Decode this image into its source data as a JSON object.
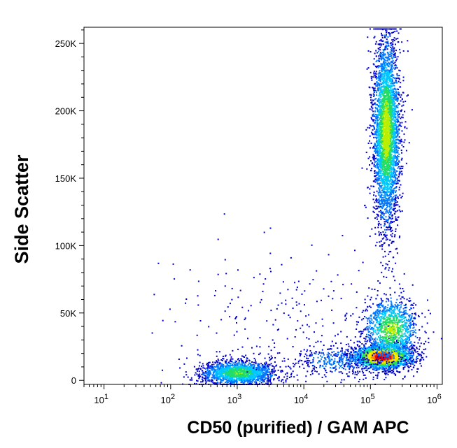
{
  "chart_data": {
    "type": "scatter",
    "subtype": "flow-cytometry-density-dot-plot",
    "xlabel": "CD50 (purified) / GAM APC",
    "ylabel": "Side Scatter",
    "x_scale": "log",
    "xlim": [
      5,
      1200000
    ],
    "ylim": [
      -3000,
      262000
    ],
    "x_ticks": [
      {
        "value": 10,
        "base": "10",
        "exp": "1"
      },
      {
        "value": 100,
        "base": "10",
        "exp": "2"
      },
      {
        "value": 1000,
        "base": "10",
        "exp": "3"
      },
      {
        "value": 10000,
        "base": "10",
        "exp": "4"
      },
      {
        "value": 100000,
        "base": "10",
        "exp": "5"
      },
      {
        "value": 1000000,
        "base": "10",
        "exp": "6"
      }
    ],
    "y_ticks": [
      {
        "value": 0,
        "label": "0"
      },
      {
        "value": 50000,
        "label": "50K"
      },
      {
        "value": 100000,
        "label": "100K"
      },
      {
        "value": 150000,
        "label": "150K"
      },
      {
        "value": 200000,
        "label": "200K"
      },
      {
        "value": 250000,
        "label": "250K"
      }
    ],
    "grid": false,
    "legend": "none",
    "color_scale": [
      "#0000cc",
      "#0077ff",
      "#00c8ff",
      "#22dd66",
      "#bbee00",
      "#ffee00",
      "#ff8800",
      "#ee0000"
    ],
    "populations": [
      {
        "cx": 1000,
        "cy": 6000,
        "sx_decades": 0.28,
        "sy": 4500,
        "n": 1700,
        "peak": 0.45
      },
      {
        "cx": 150000,
        "cy": 18000,
        "sx_decades": 0.22,
        "sy": 4500,
        "n": 2400,
        "peak": 1.0
      },
      {
        "cx": 200000,
        "cy": 38000,
        "sx_decades": 0.2,
        "sy": 12000,
        "n": 1200,
        "peak": 0.5
      },
      {
        "cx": 170000,
        "cy": 185000,
        "sx_decades": 0.1,
        "sy": 35000,
        "n": 3600,
        "peak": 0.55
      },
      {
        "cx": 30000,
        "cy": 15000,
        "sx_decades": 0.35,
        "sy": 6000,
        "n": 350,
        "peak": 0.15
      },
      {
        "cx": 5000,
        "cy": 45000,
        "sx_decades": 0.8,
        "sy": 25000,
        "n": 220,
        "peak": 0.05
      }
    ]
  }
}
